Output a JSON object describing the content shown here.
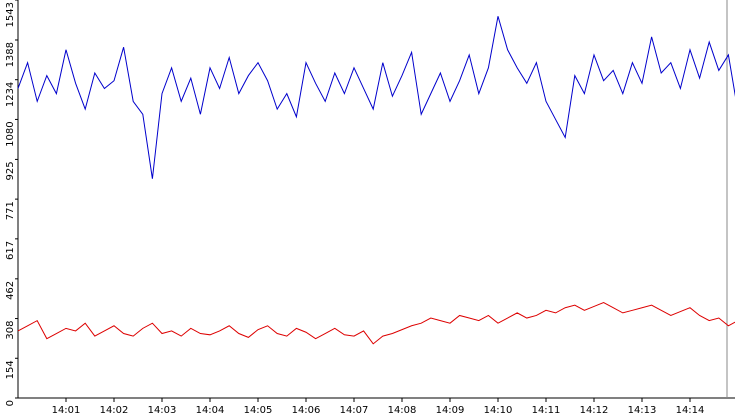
{
  "chart_data": {
    "type": "line",
    "x": [
      0,
      0.2,
      0.4,
      0.6,
      0.8,
      1,
      1.2,
      1.4,
      1.6,
      1.8,
      2,
      2.2,
      2.4,
      2.6,
      2.8,
      3,
      3.2,
      3.4,
      3.6,
      3.8,
      4,
      4.2,
      4.4,
      4.6,
      4.8,
      5,
      5.2,
      5.4,
      5.6,
      5.8,
      6,
      6.2,
      6.4,
      6.6,
      6.8,
      7,
      7.2,
      7.4,
      7.6,
      7.8,
      8,
      8.2,
      8.4,
      8.6,
      8.8,
      9,
      9.2,
      9.4,
      9.6,
      9.8,
      10,
      10.2,
      10.4,
      10.6,
      10.8,
      11,
      11.2,
      11.4,
      11.6,
      11.8,
      12,
      12.2,
      12.4,
      12.6,
      12.8,
      13,
      13.2,
      13.4,
      13.6,
      13.8,
      14,
      14.2,
      14.4,
      14.6,
      14.8,
      15
    ],
    "series": [
      {
        "color": "#0000cc",
        "values": [
          1200,
          1300,
          1150,
          1250,
          1180,
          1350,
          1220,
          1120,
          1260,
          1200,
          1230,
          1360,
          1150,
          1100,
          850,
          1180,
          1280,
          1150,
          1240,
          1100,
          1280,
          1200,
          1320,
          1180,
          1250,
          1300,
          1230,
          1120,
          1180,
          1090,
          1300,
          1220,
          1150,
          1260,
          1180,
          1280,
          1200,
          1120,
          1300,
          1170,
          1250,
          1340,
          1100,
          1180,
          1260,
          1150,
          1230,
          1330,
          1180,
          1280,
          1480,
          1350,
          1280,
          1220,
          1300,
          1150,
          1080,
          1010,
          1250,
          1180,
          1330,
          1230,
          1270,
          1180,
          1300,
          1220,
          1400,
          1260,
          1300,
          1200,
          1350,
          1240,
          1380,
          1270,
          1330,
          1110
        ]
      },
      {
        "color": "#dd0000",
        "values": [
          260,
          280,
          300,
          230,
          250,
          270,
          260,
          290,
          240,
          260,
          280,
          250,
          240,
          270,
          290,
          250,
          260,
          240,
          270,
          250,
          245,
          260,
          280,
          250,
          235,
          265,
          280,
          250,
          240,
          270,
          255,
          230,
          250,
          270,
          245,
          240,
          260,
          210,
          240,
          250,
          265,
          280,
          290,
          310,
          300,
          290,
          320,
          310,
          300,
          320,
          290,
          310,
          330,
          310,
          320,
          340,
          330,
          350,
          360,
          340,
          355,
          370,
          350,
          330,
          340,
          350,
          360,
          340,
          320,
          335,
          350,
          320,
          300,
          310,
          280,
          300
        ]
      }
    ],
    "xlim": [
      0,
      15
    ],
    "xticks": [
      {
        "value": 1,
        "label": "14:01"
      },
      {
        "value": 2,
        "label": "14:02"
      },
      {
        "value": 3,
        "label": "14:03"
      },
      {
        "value": 4,
        "label": "14:04"
      },
      {
        "value": 5,
        "label": "14:05"
      },
      {
        "value": 6,
        "label": "14:06"
      },
      {
        "value": 7,
        "label": "14:07"
      },
      {
        "value": 8,
        "label": "14:08"
      },
      {
        "value": 9,
        "label": "14:09"
      },
      {
        "value": 10,
        "label": "14:10"
      },
      {
        "value": 11,
        "label": "14:11"
      },
      {
        "value": 12,
        "label": "14:12"
      },
      {
        "value": 13,
        "label": "14:13"
      },
      {
        "value": 14,
        "label": "14:14"
      }
    ],
    "ylim": [
      0,
      1543
    ],
    "yticks": [
      0,
      154,
      308,
      462,
      617,
      771,
      925,
      1080,
      1234,
      1388,
      1543
    ]
  }
}
